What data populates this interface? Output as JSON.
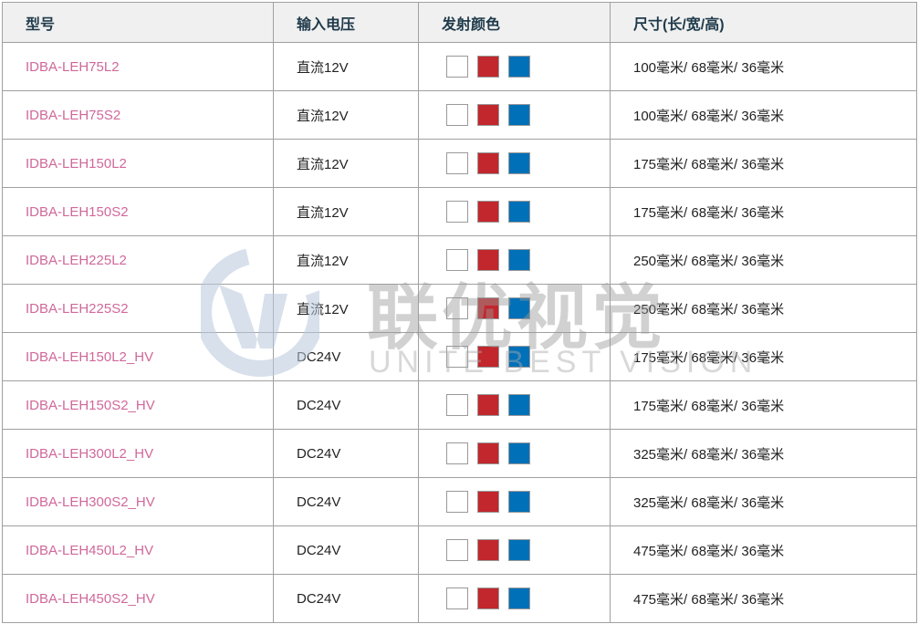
{
  "header": {
    "model": "型号",
    "voltage": "输入电压",
    "color": "发射颜色",
    "size": "尺寸(长/宽/高)"
  },
  "swatch_colors": [
    "#ffffff",
    "#c1272d",
    "#0070b8"
  ],
  "rows": [
    {
      "model": "IDBA-LEH75L2",
      "voltage": "直流12V",
      "size": "100毫米/ 68毫米/ 36毫米"
    },
    {
      "model": "IDBA-LEH75S2",
      "voltage": "直流12V",
      "size": "100毫米/ 68毫米/ 36毫米"
    },
    {
      "model": "IDBA-LEH150L2",
      "voltage": "直流12V",
      "size": "175毫米/ 68毫米/ 36毫米"
    },
    {
      "model": "IDBA-LEH150S2",
      "voltage": "直流12V",
      "size": "175毫米/ 68毫米/ 36毫米"
    },
    {
      "model": "IDBA-LEH225L2",
      "voltage": "直流12V",
      "size": "250毫米/ 68毫米/ 36毫米"
    },
    {
      "model": "IDBA-LEH225S2",
      "voltage": "直流12V",
      "size": "250毫米/ 68毫米/ 36毫米"
    },
    {
      "model": "IDBA-LEH150L2_HV",
      "voltage": "DC24V",
      "size": "175毫米/ 68毫米/ 36毫米"
    },
    {
      "model": "IDBA-LEH150S2_HV",
      "voltage": "DC24V",
      "size": "175毫米/ 68毫米/ 36毫米"
    },
    {
      "model": "IDBA-LEH300L2_HV",
      "voltage": "DC24V",
      "size": "325毫米/ 68毫米/ 36毫米"
    },
    {
      "model": "IDBA-LEH300S2_HV",
      "voltage": "DC24V",
      "size": "325毫米/ 68毫米/ 36毫米"
    },
    {
      "model": "IDBA-LEH450L2_HV",
      "voltage": "DC24V",
      "size": "475毫米/ 68毫米/ 36毫米"
    },
    {
      "model": "IDBA-LEH450S2_HV",
      "voltage": "DC24V",
      "size": "475毫米/ 68毫米/ 36毫米"
    }
  ],
  "watermark": {
    "cn": "联优视觉",
    "en": "UNITE BEST VISION"
  }
}
